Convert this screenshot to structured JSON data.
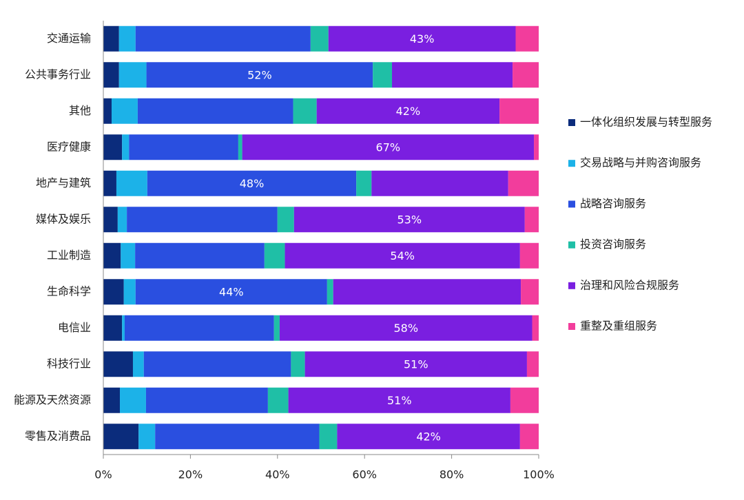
{
  "chart_data": {
    "type": "stacked-barh",
    "categories": [
      "交通运输",
      "公共事务行业",
      "其他",
      "医疗健康",
      "地产与建筑",
      "媒体及娱乐",
      "工业制造",
      "生命科学",
      "电信业",
      "科技行业",
      "能源及天然资源",
      "零售及消费品"
    ],
    "series": [
      {
        "name": "一体化组织发展与转型服务",
        "color": "#0b2c7c",
        "values": [
          3.6,
          3.6,
          1.9,
          4.3,
          3,
          3.3,
          4,
          4.7,
          4.3,
          6.8,
          3.8,
          8.1
        ]
      },
      {
        "name": "交易战略与并购咨询服务",
        "color": "#1cb2e8",
        "values": [
          3.8,
          6.3,
          6,
          1.6,
          7.1,
          2.1,
          3.3,
          2.7,
          0.6,
          2.5,
          6,
          3.8
        ]
      },
      {
        "name": "战略咨询服务",
        "color": "#2a4fe0",
        "values": [
          40.2,
          52,
          35.7,
          25.1,
          48,
          34.6,
          29.7,
          44,
          34.3,
          33.8,
          28,
          37.7
        ],
        "value_labels": [
          null,
          "52%",
          null,
          null,
          "48%",
          null,
          null,
          "44%",
          null,
          null,
          null,
          null
        ]
      },
      {
        "name": "投资咨询服务",
        "color": "#1fbfa6",
        "values": [
          4.1,
          4.4,
          5.4,
          0.9,
          3.5,
          3.8,
          4.7,
          1.4,
          1.3,
          3.2,
          4.7,
          4.1
        ]
      },
      {
        "name": "治理和风险合规服务",
        "color": "#7a1fe0",
        "values": [
          43,
          27.7,
          42,
          67,
          31.4,
          53,
          54,
          43.1,
          58,
          51,
          51,
          42
        ],
        "value_labels": [
          "43%",
          null,
          "42%",
          "67%",
          null,
          "53%",
          "54%",
          null,
          "58%",
          "51%",
          "51%",
          "42%"
        ]
      },
      {
        "name": "重整及重组服务",
        "color": "#f23d9c",
        "values": [
          5.3,
          6,
          9,
          1.1,
          7,
          3.2,
          4.3,
          4.1,
          1.5,
          2.7,
          6.5,
          4.3
        ]
      }
    ],
    "xlim": [
      0,
      100
    ],
    "xticks": [
      {
        "value": 0,
        "label": "0%"
      },
      {
        "value": 20,
        "label": "20%"
      },
      {
        "value": 40,
        "label": "40%"
      },
      {
        "value": 60,
        "label": "60%"
      },
      {
        "value": 80,
        "label": "80%"
      },
      {
        "value": 100,
        "label": "100%"
      }
    ],
    "legend": "right"
  }
}
